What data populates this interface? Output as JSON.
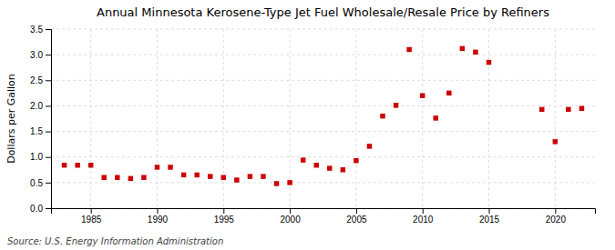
{
  "chart_data": {
    "type": "scatter",
    "title": "Annual Minnesota Kerosene-Type Jet Fuel Wholesale/Resale Price by Refiners",
    "y_label": "Dollars per Gallon",
    "annotations": [
      "Source: U.S. Energy Information Administration"
    ],
    "x": [
      1983,
      1984,
      1985,
      1986,
      1987,
      1988,
      1989,
      1990,
      1991,
      1992,
      1993,
      1994,
      1995,
      1996,
      1997,
      1998,
      1999,
      2000,
      2001,
      2002,
      2003,
      2004,
      2005,
      2006,
      2007,
      2008,
      2009,
      2010,
      2011,
      2012,
      2013,
      2014,
      2015,
      2019,
      2020,
      2021,
      2022
    ],
    "values": [
      0.84,
      0.84,
      0.84,
      0.6,
      0.6,
      0.58,
      0.6,
      0.8,
      0.8,
      0.65,
      0.65,
      0.62,
      0.6,
      0.55,
      0.62,
      0.62,
      0.48,
      0.5,
      0.94,
      0.84,
      0.78,
      0.75,
      0.93,
      1.21,
      1.8,
      2.01,
      3.1,
      2.2,
      1.76,
      2.25,
      3.12,
      3.05,
      2.85,
      1.93,
      1.3,
      1.93,
      1.95
    ],
    "color": "#cc0000",
    "marker": "square",
    "grid": true,
    "xlim": [
      1982,
      2023
    ],
    "xticks": [
      1985,
      1990,
      1995,
      2000,
      2005,
      2010,
      2015,
      2020
    ],
    "ylim": [
      0.0,
      3.5
    ],
    "yticks": [
      {
        "value": 0,
        "label": "0.0"
      },
      0.5,
      {
        "value": 1,
        "label": "1.0"
      },
      1.5,
      {
        "value": 2,
        "label": "2.0"
      },
      2.5,
      {
        "value": 3,
        "label": "3.0"
      },
      3.5
    ]
  }
}
